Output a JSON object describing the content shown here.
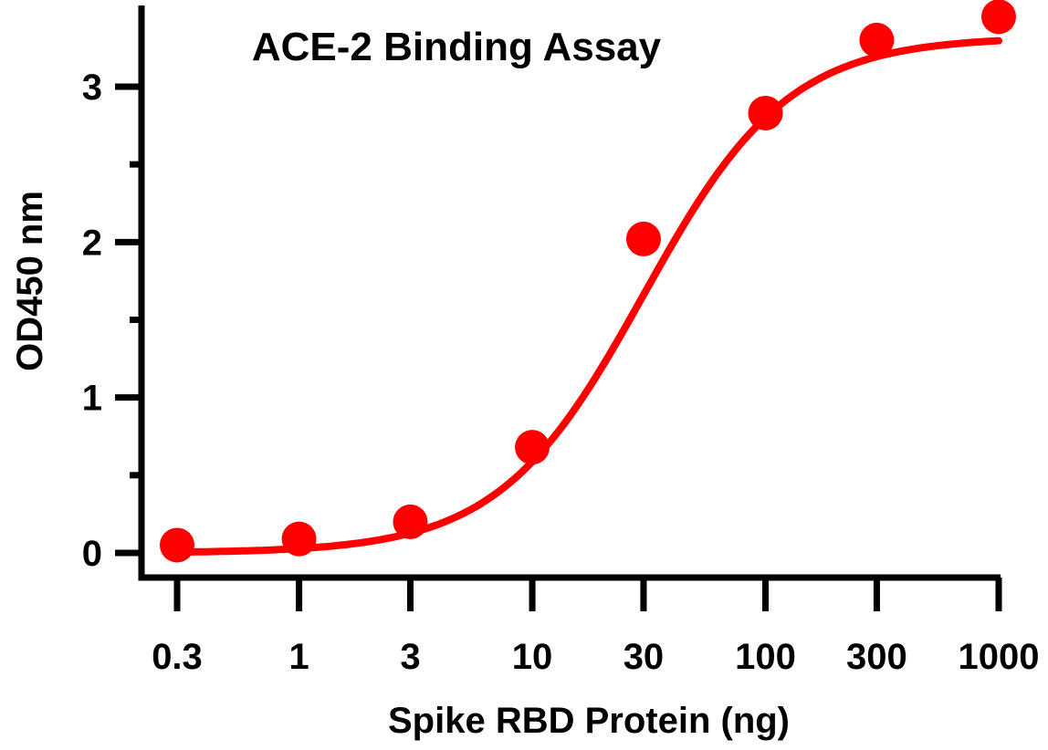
{
  "chart_data": {
    "type": "scatter",
    "title": "ACE-2 Binding Assay",
    "xlabel": "Spike RBD Protein (ng)",
    "ylabel": "OD450 nm",
    "xscale": "log",
    "xlim": [
      0.3,
      1000
    ],
    "ylim": [
      0,
      3.4
    ],
    "x_ticks": [
      0.3,
      1,
      3,
      10,
      30,
      100,
      300,
      1000
    ],
    "x_tick_labels": [
      "0.3",
      "1",
      "3",
      "10",
      "30",
      "100",
      "300",
      "1000"
    ],
    "y_ticks": [
      0,
      1,
      2,
      3
    ],
    "y_tick_labels": [
      "0",
      "1",
      "2",
      "3"
    ],
    "y_minor_step": 0.5,
    "series": [
      {
        "name": "ACE-2 binding",
        "color": "#ff0000",
        "points": [
          {
            "x": 0.3,
            "y": 0.05
          },
          {
            "x": 1,
            "y": 0.09
          },
          {
            "x": 3,
            "y": 0.2
          },
          {
            "x": 10,
            "y": 0.68
          },
          {
            "x": 30,
            "y": 2.02
          },
          {
            "x": 100,
            "y": 2.83
          },
          {
            "x": 300,
            "y": 3.3
          },
          {
            "x": 1000,
            "y": 3.45
          }
        ],
        "fit": {
          "model": "4PL",
          "bottom": 0.0,
          "top": 3.32,
          "ec50": 30,
          "hill": 1.4
        }
      }
    ]
  }
}
